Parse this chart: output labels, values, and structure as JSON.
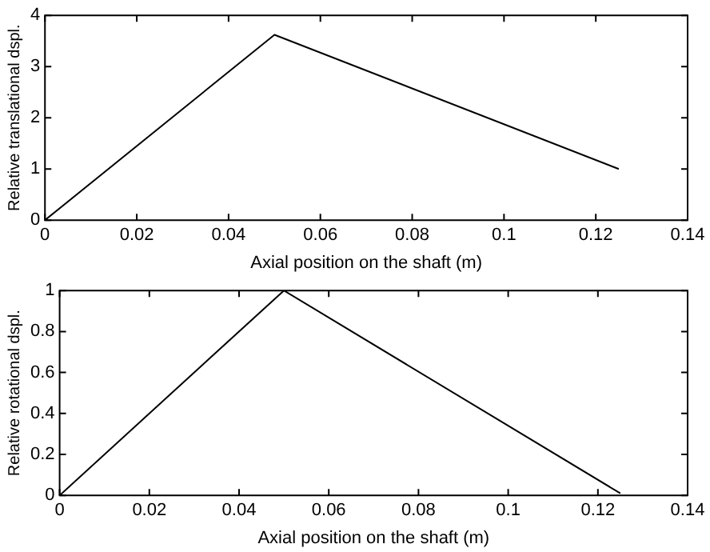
{
  "chart_data": [
    {
      "type": "line",
      "x": [
        0,
        0.05,
        0.125
      ],
      "xlabel": "Axial position on the shaft (m)",
      "ylabel": "Relative translational dspl.",
      "series": [
        {
          "color": "#000000",
          "values": [
            0,
            3.62,
            1
          ]
        }
      ],
      "xlim": [
        0,
        0.14
      ],
      "xticks": [
        0,
        0.02,
        0.04,
        0.06,
        0.08,
        0.1,
        0.12,
        0.14
      ],
      "ylim": [
        0,
        4
      ],
      "yticks": [
        0,
        1,
        2,
        3,
        4
      ],
      "grid": false,
      "legend": false,
      "marker": "none",
      "line_style": "solid"
    },
    {
      "type": "line",
      "x": [
        0,
        0.05,
        0.125
      ],
      "xlabel": "Axial position on the shaft (m)",
      "ylabel": "Relative rotational dspl.",
      "series": [
        {
          "color": "#000000",
          "values": [
            0,
            1,
            0.01
          ]
        }
      ],
      "xlim": [
        0,
        0.14
      ],
      "xticks": [
        0,
        0.02,
        0.04,
        0.06,
        0.08,
        0.1,
        0.12,
        0.14
      ],
      "ylim": [
        0,
        1
      ],
      "yticks": [
        0,
        0.2,
        0.4,
        0.6,
        0.8,
        1
      ],
      "grid": false,
      "legend": false,
      "marker": "none",
      "line_style": "solid"
    }
  ]
}
